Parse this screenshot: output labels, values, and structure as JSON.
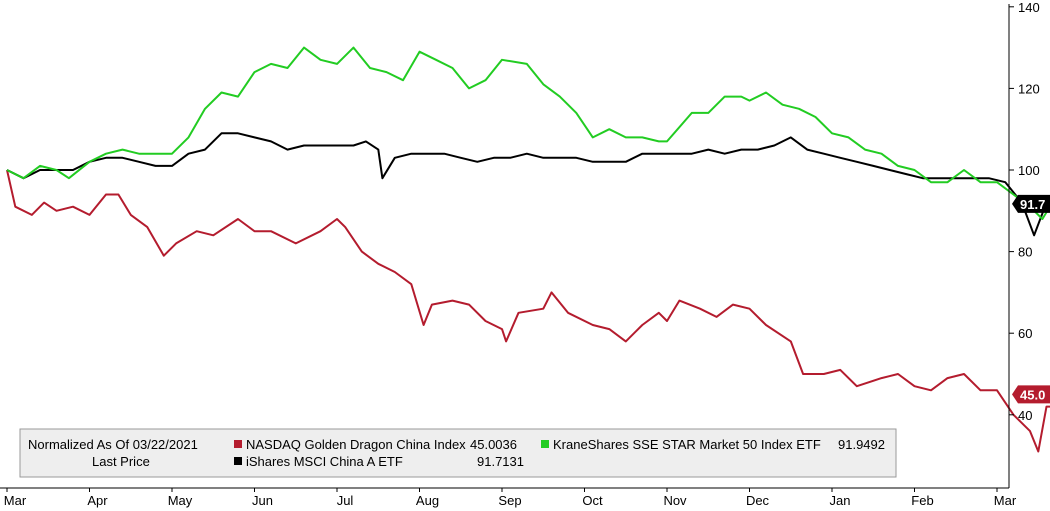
{
  "chart_data": {
    "type": "line",
    "x_ticks": [
      "Mar",
      "Apr",
      "May",
      "Jun",
      "Jul",
      "Aug",
      "Sep",
      "Oct",
      "Nov",
      "Dec",
      "Jan",
      "Feb",
      "Mar"
    ],
    "y_ticks": [
      40,
      60,
      80,
      100,
      120,
      140
    ],
    "ylim": [
      25,
      142
    ],
    "grid": false,
    "legend_position": "bottom-left",
    "legend": {
      "header_line1": "Normalized As Of 03/22/2021",
      "header_line2": "Last Price",
      "entries": [
        {
          "label": "NASDAQ Golden Dragon China Index",
          "value": "45.0036",
          "color": "#b41c2e"
        },
        {
          "label": "KraneShares SSE STAR Market 50 Index ETF",
          "value": "91.9492",
          "color": "#22cc22"
        },
        {
          "label": "iShares MSCI China A ETF",
          "value": "91.7131",
          "color": "#000000"
        }
      ]
    },
    "badges": [
      {
        "text": "91.7",
        "value": 91.7,
        "color": "#000000"
      },
      {
        "text": "45.0",
        "value": 45.0,
        "color": "#b41c2e"
      }
    ],
    "series": [
      {
        "name": "NASDAQ Golden Dragon China Index",
        "color": "#b41c2e",
        "points": [
          [
            0,
            100
          ],
          [
            0.1,
            91
          ],
          [
            0.3,
            89
          ],
          [
            0.45,
            92
          ],
          [
            0.6,
            90
          ],
          [
            0.8,
            91
          ],
          [
            1,
            89
          ],
          [
            1.2,
            94
          ],
          [
            1.35,
            94
          ],
          [
            1.5,
            89
          ],
          [
            1.7,
            86
          ],
          [
            1.9,
            79
          ],
          [
            2.05,
            82
          ],
          [
            2.3,
            85
          ],
          [
            2.5,
            84
          ],
          [
            2.8,
            88
          ],
          [
            3,
            85
          ],
          [
            3.2,
            85
          ],
          [
            3.5,
            82
          ],
          [
            3.8,
            85
          ],
          [
            4,
            88
          ],
          [
            4.1,
            86
          ],
          [
            4.3,
            80
          ],
          [
            4.5,
            77
          ],
          [
            4.7,
            75
          ],
          [
            4.9,
            72
          ],
          [
            5.05,
            62
          ],
          [
            5.15,
            67
          ],
          [
            5.4,
            68
          ],
          [
            5.6,
            67
          ],
          [
            5.8,
            63
          ],
          [
            6.0,
            61
          ],
          [
            6.05,
            58
          ],
          [
            6.2,
            65
          ],
          [
            6.5,
            66
          ],
          [
            6.6,
            70
          ],
          [
            6.8,
            65
          ],
          [
            7.1,
            62
          ],
          [
            7.3,
            61
          ],
          [
            7.5,
            58
          ],
          [
            7.7,
            62
          ],
          [
            7.9,
            65
          ],
          [
            8.0,
            63
          ],
          [
            8.15,
            68
          ],
          [
            8.4,
            66
          ],
          [
            8.6,
            64
          ],
          [
            8.8,
            67
          ],
          [
            9,
            66
          ],
          [
            9.2,
            62
          ],
          [
            9.5,
            58
          ],
          [
            9.65,
            50
          ],
          [
            9.9,
            50
          ],
          [
            10.1,
            51
          ],
          [
            10.3,
            47
          ],
          [
            10.6,
            49
          ],
          [
            10.8,
            50
          ],
          [
            11,
            47
          ],
          [
            11.2,
            46
          ],
          [
            11.4,
            49
          ],
          [
            11.6,
            50
          ],
          [
            11.8,
            46
          ],
          [
            12,
            46
          ],
          [
            12.2,
            40
          ],
          [
            12.4,
            36
          ],
          [
            12.5,
            31
          ],
          [
            12.6,
            42
          ],
          [
            12.75,
            42
          ],
          [
            12.9,
            45
          ]
        ]
      },
      {
        "name": "KraneShares SSE STAR Market 50 Index ETF",
        "color": "#22cc22",
        "points": [
          [
            0,
            100
          ],
          [
            0.2,
            98
          ],
          [
            0.4,
            101
          ],
          [
            0.6,
            100
          ],
          [
            0.75,
            98
          ],
          [
            1,
            102
          ],
          [
            1.2,
            104
          ],
          [
            1.4,
            105
          ],
          [
            1.6,
            104
          ],
          [
            1.8,
            104
          ],
          [
            2,
            104
          ],
          [
            2.2,
            108
          ],
          [
            2.4,
            115
          ],
          [
            2.6,
            119
          ],
          [
            2.8,
            118
          ],
          [
            3,
            124
          ],
          [
            3.2,
            126
          ],
          [
            3.4,
            125
          ],
          [
            3.6,
            130
          ],
          [
            3.8,
            127
          ],
          [
            4.0,
            126
          ],
          [
            4.2,
            130
          ],
          [
            4.4,
            125
          ],
          [
            4.6,
            124
          ],
          [
            4.8,
            122
          ],
          [
            5.0,
            129
          ],
          [
            5.2,
            127
          ],
          [
            5.4,
            125
          ],
          [
            5.6,
            120
          ],
          [
            5.8,
            122
          ],
          [
            6.0,
            127
          ],
          [
            6.3,
            126
          ],
          [
            6.5,
            121
          ],
          [
            6.7,
            118
          ],
          [
            6.9,
            114
          ],
          [
            7.1,
            108
          ],
          [
            7.3,
            110
          ],
          [
            7.5,
            108
          ],
          [
            7.7,
            108
          ],
          [
            7.9,
            107
          ],
          [
            8.0,
            107
          ],
          [
            8.3,
            114
          ],
          [
            8.5,
            114
          ],
          [
            8.7,
            118
          ],
          [
            8.9,
            118
          ],
          [
            9.0,
            117
          ],
          [
            9.2,
            119
          ],
          [
            9.4,
            116
          ],
          [
            9.6,
            115
          ],
          [
            9.8,
            113
          ],
          [
            10.0,
            109
          ],
          [
            10.2,
            108
          ],
          [
            10.4,
            105
          ],
          [
            10.6,
            104
          ],
          [
            10.8,
            101
          ],
          [
            11.0,
            100
          ],
          [
            11.2,
            97
          ],
          [
            11.4,
            97
          ],
          [
            11.6,
            100
          ],
          [
            11.8,
            97
          ],
          [
            12.0,
            97
          ],
          [
            12.2,
            94
          ],
          [
            12.4,
            91
          ],
          [
            12.55,
            88
          ],
          [
            12.7,
            93
          ],
          [
            12.85,
            92
          ],
          [
            12.95,
            91.9
          ]
        ]
      },
      {
        "name": "iShares MSCI China A ETF",
        "color": "#000000",
        "points": [
          [
            0,
            100
          ],
          [
            0.2,
            98
          ],
          [
            0.4,
            100
          ],
          [
            0.6,
            100
          ],
          [
            0.8,
            100
          ],
          [
            1,
            102
          ],
          [
            1.2,
            103
          ],
          [
            1.4,
            103
          ],
          [
            1.6,
            102
          ],
          [
            1.8,
            101
          ],
          [
            2,
            101
          ],
          [
            2.2,
            104
          ],
          [
            2.4,
            105
          ],
          [
            2.6,
            109
          ],
          [
            2.8,
            109
          ],
          [
            3,
            108
          ],
          [
            3.2,
            107
          ],
          [
            3.4,
            105
          ],
          [
            3.6,
            106
          ],
          [
            3.8,
            106
          ],
          [
            4.0,
            106
          ],
          [
            4.2,
            106
          ],
          [
            4.35,
            107
          ],
          [
            4.5,
            105
          ],
          [
            4.55,
            98
          ],
          [
            4.7,
            103
          ],
          [
            4.9,
            104
          ],
          [
            5.1,
            104
          ],
          [
            5.3,
            104
          ],
          [
            5.5,
            103
          ],
          [
            5.7,
            102
          ],
          [
            5.9,
            103
          ],
          [
            6.1,
            103
          ],
          [
            6.3,
            104
          ],
          [
            6.5,
            103
          ],
          [
            6.7,
            103
          ],
          [
            6.9,
            103
          ],
          [
            7.1,
            102
          ],
          [
            7.3,
            102
          ],
          [
            7.5,
            102
          ],
          [
            7.7,
            104
          ],
          [
            7.9,
            104
          ],
          [
            8.1,
            104
          ],
          [
            8.3,
            104
          ],
          [
            8.5,
            105
          ],
          [
            8.7,
            104
          ],
          [
            8.9,
            105
          ],
          [
            9.1,
            105
          ],
          [
            9.3,
            106
          ],
          [
            9.5,
            108
          ],
          [
            9.7,
            105
          ],
          [
            9.9,
            104
          ],
          [
            10.1,
            103
          ],
          [
            10.3,
            102
          ],
          [
            10.5,
            101
          ],
          [
            10.7,
            100
          ],
          [
            10.9,
            99
          ],
          [
            11.1,
            98
          ],
          [
            11.3,
            98
          ],
          [
            11.5,
            98
          ],
          [
            11.7,
            98
          ],
          [
            11.9,
            98
          ],
          [
            12.1,
            97
          ],
          [
            12.3,
            92
          ],
          [
            12.45,
            84
          ],
          [
            12.6,
            92
          ],
          [
            12.75,
            92
          ],
          [
            12.9,
            91.7
          ]
        ]
      }
    ]
  }
}
